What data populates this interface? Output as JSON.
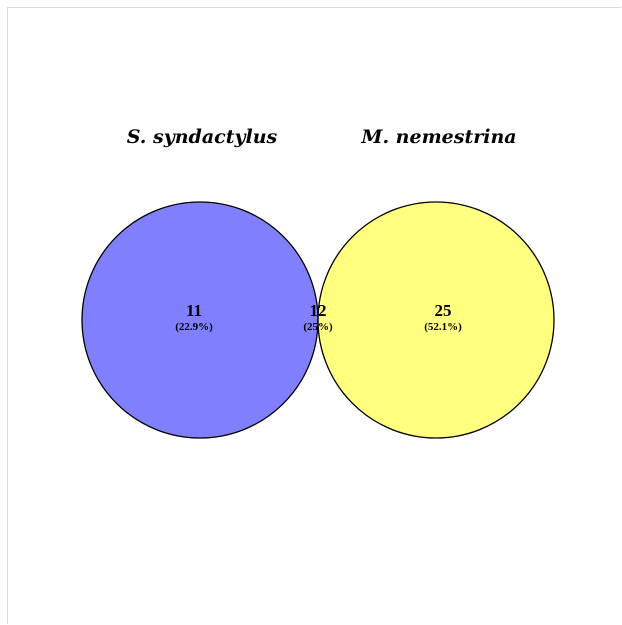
{
  "venn": {
    "set_a": {
      "label": "S. syndactylus",
      "color": "#8080ff"
    },
    "set_b": {
      "label": "M. nemestrina",
      "color": "#ffff80"
    },
    "overlap_color": "#bdbb80",
    "outline_color": "#000000",
    "regions": {
      "only_a": {
        "count": "11",
        "percent": "(22.9%)"
      },
      "both": {
        "count": "12",
        "percent": "(25%)"
      },
      "only_b": {
        "count": "25",
        "percent": "(52.1%)"
      }
    }
  }
}
